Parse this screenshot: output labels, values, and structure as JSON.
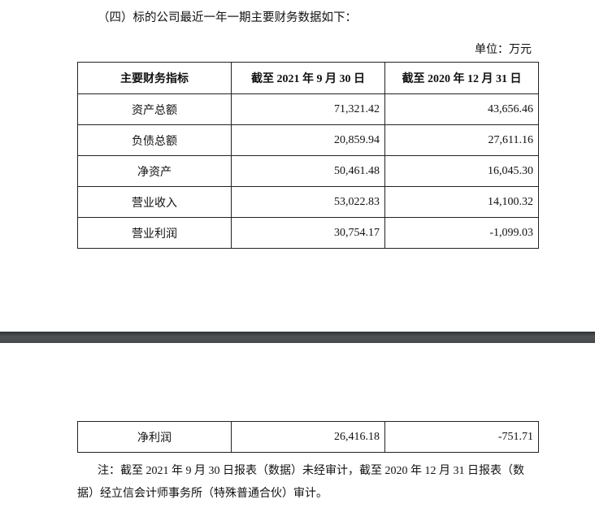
{
  "heading": "（四）标的公司最近一年一期主要财务数据如下：",
  "unit": "单位：万元",
  "table": {
    "headers": [
      "主要财务指标",
      "截至 2021 年 9 月 30 日",
      "截至 2020 年 12 月 31 日"
    ],
    "rows": [
      [
        "资产总额",
        "71,321.42",
        "43,656.46"
      ],
      [
        "负债总额",
        "20,859.94",
        "27,611.16"
      ],
      [
        "净资产",
        "50,461.48",
        "16,045.30"
      ],
      [
        "营业收入",
        "53,022.83",
        "14,100.32"
      ],
      [
        "营业利润",
        "30,754.17",
        "-1,099.03"
      ]
    ],
    "continued_rows": [
      [
        "净利润",
        "26,416.18",
        "-751.71"
      ]
    ]
  },
  "note": {
    "line1": "注：截至 2021 年 9 月 30 日报表（数据）未经审计，截至 2020 年 12 月 31 日报表（数",
    "line2": "据）经立信会计师事务所（特殊普通合伙）审计。"
  }
}
